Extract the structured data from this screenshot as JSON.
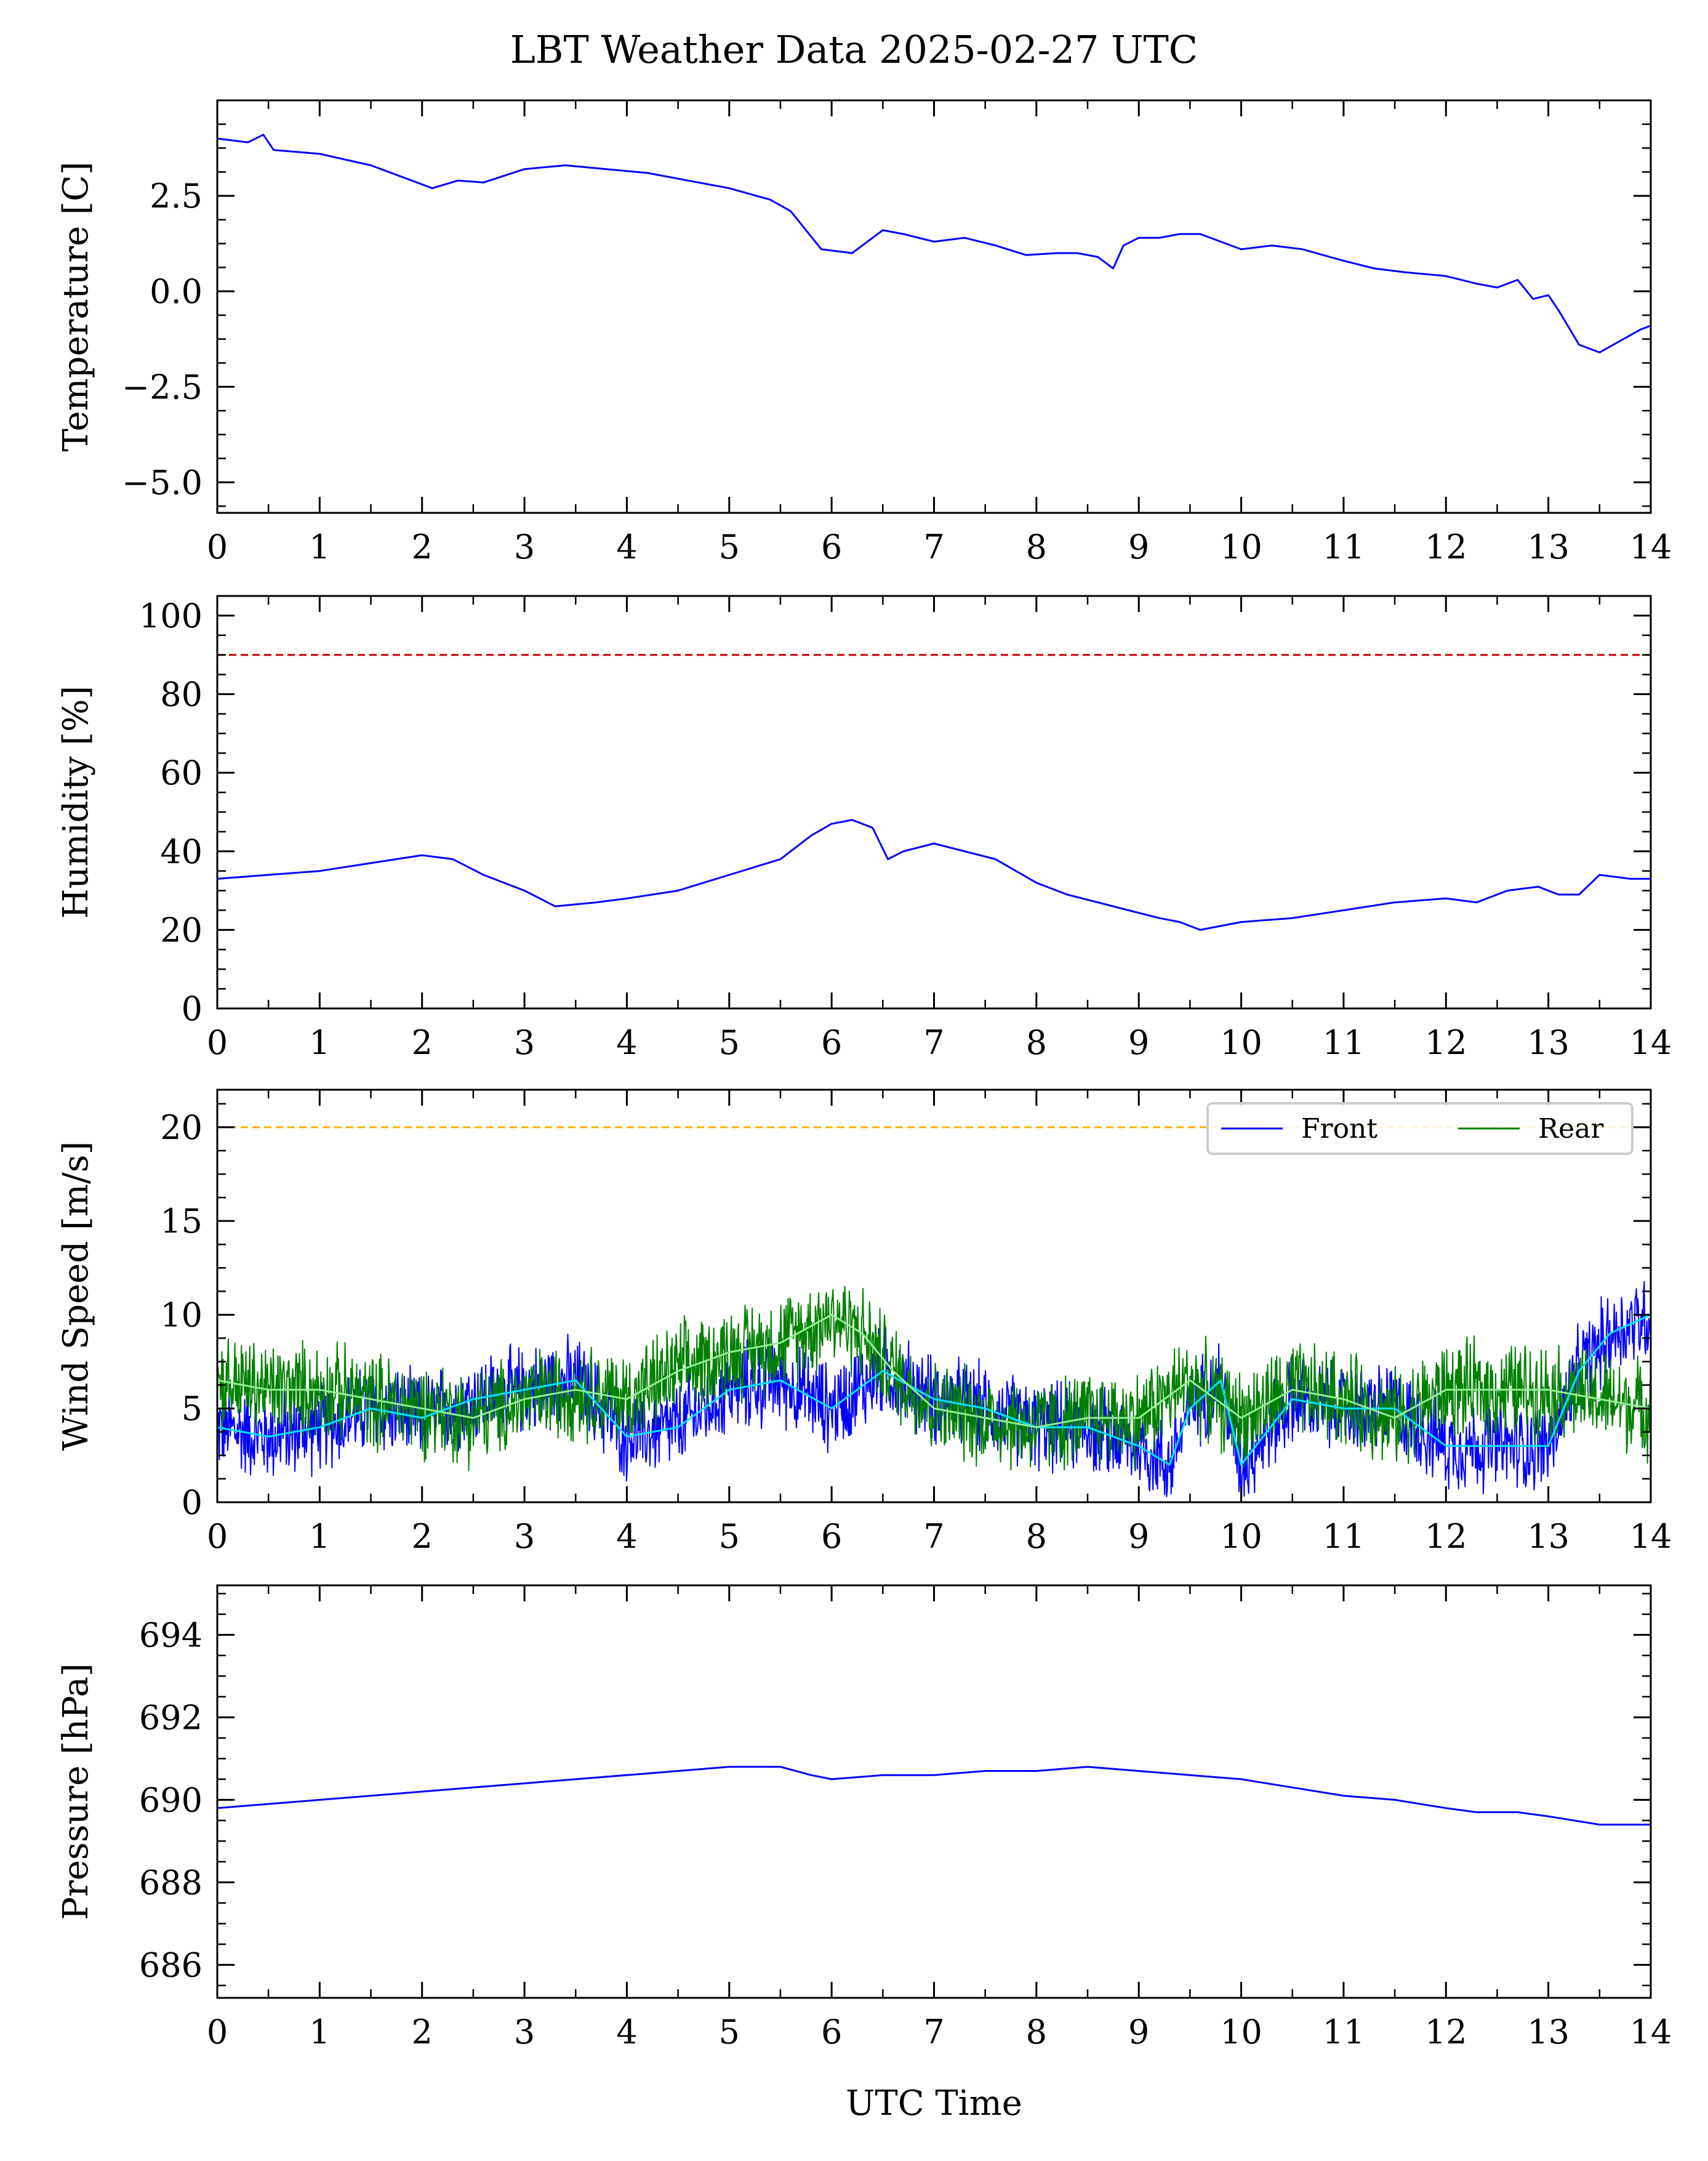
{
  "title": "LBT Weather Data 2025-02-27 UTC",
  "colors": {
    "front": "#0000ff",
    "rear": "#008000",
    "front_avg": "#00e5ff",
    "rear_avg": "#90ee90",
    "red_limit": "#cc0000",
    "orange_limit": "#ffb000"
  },
  "chart_data": [
    {
      "type": "line",
      "name": "temperature",
      "ylabel": "Temperature [C]",
      "xlabel": "",
      "xlim": [
        0,
        14
      ],
      "ylim": [
        -5.8,
        5.0
      ],
      "xticks": [
        0,
        1,
        2,
        3,
        4,
        5,
        6,
        7,
        8,
        9,
        10,
        11,
        12,
        13,
        14
      ],
      "xtick_labels": [
        "0",
        "1",
        "2",
        "3",
        "4",
        "5",
        "6",
        "7",
        "8",
        "9",
        "10",
        "11",
        "12",
        "13",
        "14"
      ],
      "yticks": [
        -5.0,
        -2.5,
        0.0,
        2.5
      ],
      "ytick_labels": [
        "−5.0",
        "−2.5",
        "0.0",
        "2.5"
      ],
      "series": [
        {
          "name": "Temperature",
          "color": "#0000ff",
          "x": [
            0,
            0.3,
            0.45,
            0.55,
            1,
            1.5,
            1.9,
            2.1,
            2.35,
            2.6,
            3,
            3.4,
            3.8,
            4.2,
            4.6,
            5,
            5.4,
            5.6,
            5.75,
            5.9,
            6.2,
            6.3,
            6.5,
            6.7,
            7,
            7.3,
            7.6,
            7.9,
            8.2,
            8.4,
            8.6,
            8.75,
            8.85,
            9,
            9.2,
            9.4,
            9.6,
            9.8,
            10,
            10.3,
            10.6,
            11,
            11.3,
            11.6,
            12,
            12.3,
            12.5,
            12.7,
            12.85,
            13,
            13.1,
            13.3,
            13.5,
            13.7,
            13.9,
            14
          ],
          "y": [
            4.0,
            3.9,
            4.1,
            3.7,
            3.6,
            3.3,
            2.9,
            2.7,
            2.9,
            2.85,
            3.2,
            3.3,
            3.2,
            3.1,
            2.9,
            2.7,
            2.4,
            2.1,
            1.6,
            1.1,
            1.0,
            1.2,
            1.6,
            1.5,
            1.3,
            1.4,
            1.2,
            0.95,
            1.0,
            1.0,
            0.9,
            0.6,
            1.2,
            1.4,
            1.4,
            1.5,
            1.5,
            1.3,
            1.1,
            1.2,
            1.1,
            0.8,
            0.6,
            0.5,
            0.4,
            0.2,
            0.1,
            0.3,
            -0.2,
            -0.1,
            -0.5,
            -1.4,
            -1.6,
            -1.3,
            -1.0,
            -0.9
          ]
        }
      ],
      "hlines": []
    },
    {
      "type": "line",
      "name": "humidity",
      "ylabel": "Humidity [%]",
      "xlabel": "",
      "xlim": [
        0,
        14
      ],
      "ylim": [
        0,
        105
      ],
      "xticks": [
        0,
        1,
        2,
        3,
        4,
        5,
        6,
        7,
        8,
        9,
        10,
        11,
        12,
        13,
        14
      ],
      "xtick_labels": [
        "0",
        "1",
        "2",
        "3",
        "4",
        "5",
        "6",
        "7",
        "8",
        "9",
        "10",
        "11",
        "12",
        "13",
        "14"
      ],
      "yticks": [
        0,
        20,
        40,
        60,
        80,
        100
      ],
      "ytick_labels": [
        "0",
        "20",
        "40",
        "60",
        "80",
        "100"
      ],
      "series": [
        {
          "name": "Humidity",
          "color": "#0000ff",
          "x": [
            0,
            0.5,
            1,
            1.5,
            2,
            2.3,
            2.6,
            3,
            3.3,
            3.7,
            4,
            4.5,
            5,
            5.5,
            5.8,
            6,
            6.2,
            6.4,
            6.55,
            6.7,
            7,
            7.3,
            7.6,
            7.8,
            8,
            8.3,
            8.6,
            8.9,
            9.2,
            9.4,
            9.6,
            9.8,
            10,
            10.5,
            11,
            11.5,
            12,
            12.3,
            12.6,
            12.9,
            13.1,
            13.3,
            13.5,
            13.8,
            14
          ],
          "y": [
            33,
            34,
            35,
            37,
            39,
            38,
            34,
            30,
            26,
            27,
            28,
            30,
            34,
            38,
            44,
            47,
            48,
            46,
            38,
            40,
            42,
            40,
            38,
            35,
            32,
            29,
            27,
            25,
            23,
            22,
            20,
            21,
            22,
            23,
            25,
            27,
            28,
            27,
            30,
            31,
            29,
            29,
            34,
            33,
            33
          ]
        }
      ],
      "hlines": [
        {
          "y": 90,
          "color": "#cc0000"
        }
      ]
    },
    {
      "type": "line",
      "name": "wind_speed",
      "ylabel": "Wind Speed [m/s]",
      "xlabel": "",
      "xlim": [
        0,
        14
      ],
      "ylim": [
        0,
        22
      ],
      "xticks": [
        0,
        1,
        2,
        3,
        4,
        5,
        6,
        7,
        8,
        9,
        10,
        11,
        12,
        13,
        14
      ],
      "xtick_labels": [
        "0",
        "1",
        "2",
        "3",
        "4",
        "5",
        "6",
        "7",
        "8",
        "9",
        "10",
        "11",
        "12",
        "13",
        "14"
      ],
      "yticks": [
        0,
        5,
        10,
        15,
        20
      ],
      "ytick_labels": [
        "0",
        "5",
        "10",
        "15",
        "20"
      ],
      "legend": {
        "entries": [
          "Front",
          "Rear"
        ],
        "placement": "top-right"
      },
      "series": [
        {
          "name": "Front",
          "color": "#0000ff",
          "noisy": true,
          "noise": 2.8,
          "x": [
            0,
            0.5,
            1,
            1.5,
            2,
            2.5,
            3,
            3.5,
            4,
            4.5,
            5,
            5.5,
            6,
            6.5,
            7,
            7.5,
            8,
            8.5,
            9,
            9.3,
            9.5,
            9.8,
            10,
            10.5,
            11,
            11.5,
            12,
            12.5,
            13,
            13.3,
            13.6,
            14
          ],
          "y": [
            4,
            3.5,
            4,
            5,
            4.5,
            5.5,
            6,
            6.5,
            3.5,
            4,
            6,
            6.5,
            5,
            7,
            5.5,
            5,
            4,
            4,
            3,
            2,
            5,
            6.5,
            2,
            5.5,
            5,
            5,
            3,
            3,
            3,
            7,
            9,
            10
          ]
        },
        {
          "name": "Rear",
          "color": "#008000",
          "noisy": true,
          "noise": 3.0,
          "x": [
            0,
            0.5,
            1,
            1.5,
            2,
            2.5,
            3,
            3.5,
            4,
            4.5,
            5,
            5.5,
            6,
            6.3,
            6.6,
            7,
            7.5,
            8,
            8.5,
            9,
            9.5,
            10,
            10.5,
            11,
            11.5,
            12,
            12.5,
            13,
            13.5,
            14
          ],
          "y": [
            6.5,
            6,
            6,
            5.5,
            5,
            4.5,
            5.5,
            6,
            5.5,
            7,
            8,
            8.5,
            10,
            9,
            7,
            5,
            4.5,
            4,
            4.5,
            4.5,
            6.5,
            4.5,
            6,
            5.5,
            4.5,
            6,
            6,
            6,
            5.5,
            5
          ]
        },
        {
          "name": "Front avg",
          "color": "#00e5ff",
          "noisy": false,
          "x": [
            0,
            0.5,
            1,
            1.5,
            2,
            2.5,
            3,
            3.5,
            4,
            4.5,
            5,
            5.5,
            6,
            6.5,
            7,
            7.5,
            8,
            8.5,
            9,
            9.3,
            9.5,
            9.8,
            10,
            10.5,
            11,
            11.5,
            12,
            12.5,
            13,
            13.3,
            13.6,
            14
          ],
          "y": [
            4,
            3.5,
            4,
            5,
            4.5,
            5.5,
            6,
            6.5,
            3.5,
            4,
            6,
            6.5,
            5,
            7,
            5.5,
            5,
            4,
            4,
            3,
            2,
            5,
            6.5,
            2,
            5.5,
            5,
            5,
            3,
            3,
            3,
            7,
            9,
            10
          ]
        },
        {
          "name": "Rear avg",
          "color": "#90ee90",
          "noisy": false,
          "x": [
            0,
            0.5,
            1,
            1.5,
            2,
            2.5,
            3,
            3.5,
            4,
            4.5,
            5,
            5.5,
            6,
            6.3,
            6.6,
            7,
            7.5,
            8,
            8.5,
            9,
            9.5,
            10,
            10.5,
            11,
            11.5,
            12,
            12.5,
            13,
            13.5,
            14
          ],
          "y": [
            6.5,
            6,
            6,
            5.5,
            5,
            4.5,
            5.5,
            6,
            5.5,
            7,
            8,
            8.5,
            10,
            9,
            7,
            5,
            4.5,
            4,
            4.5,
            4.5,
            6.5,
            4.5,
            6,
            5.5,
            4.5,
            6,
            6,
            6,
            5.5,
            5
          ]
        }
      ],
      "hlines": [
        {
          "y": 22,
          "color": "#cc0000"
        },
        {
          "y": 20,
          "color": "#ffb000"
        }
      ]
    },
    {
      "type": "line",
      "name": "pressure",
      "ylabel": "Pressure [hPa]",
      "xlabel": "UTC Time",
      "xlim": [
        0,
        14
      ],
      "ylim": [
        685.2,
        695.2
      ],
      "xticks": [
        0,
        1,
        2,
        3,
        4,
        5,
        6,
        7,
        8,
        9,
        10,
        11,
        12,
        13,
        14
      ],
      "xtick_labels": [
        "0",
        "1",
        "2",
        "3",
        "4",
        "5",
        "6",
        "7",
        "8",
        "9",
        "10",
        "11",
        "12",
        "13",
        "14"
      ],
      "yticks": [
        686,
        688,
        690,
        692,
        694
      ],
      "ytick_labels": [
        "686",
        "688",
        "690",
        "692",
        "694"
      ],
      "series": [
        {
          "name": "Pressure",
          "color": "#0000ff",
          "x": [
            0,
            0.5,
            1,
            1.5,
            2,
            2.5,
            3,
            3.5,
            4,
            4.5,
            5,
            5.5,
            5.8,
            6,
            6.5,
            7,
            7.5,
            8,
            8.5,
            9,
            9.5,
            10,
            10.5,
            11,
            11.5,
            12,
            12.3,
            12.7,
            13,
            13.5,
            14
          ],
          "y": [
            689.8,
            689.9,
            690.0,
            690.1,
            690.2,
            690.3,
            690.4,
            690.5,
            690.6,
            690.7,
            690.8,
            690.8,
            690.6,
            690.5,
            690.6,
            690.6,
            690.7,
            690.7,
            690.8,
            690.7,
            690.6,
            690.5,
            690.3,
            690.1,
            690.0,
            689.8,
            689.7,
            689.7,
            689.6,
            689.4,
            689.4
          ]
        }
      ],
      "hlines": []
    }
  ]
}
